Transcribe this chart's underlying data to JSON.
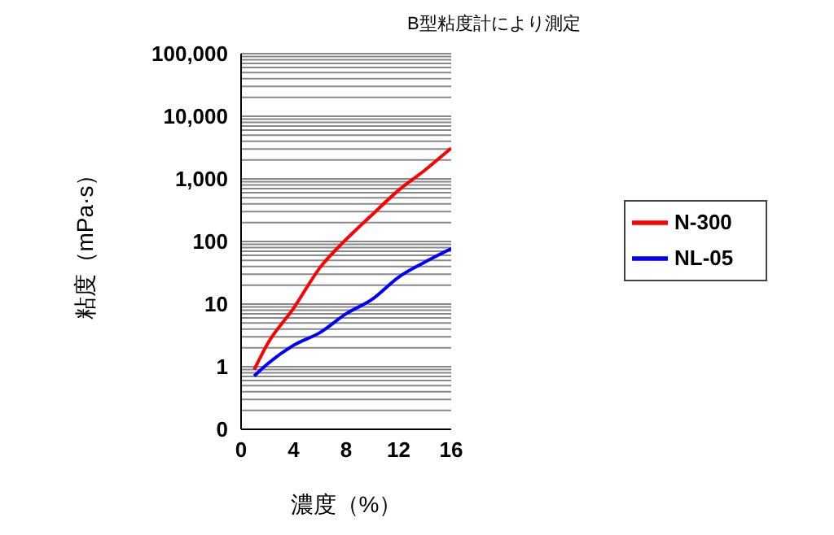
{
  "chart_data": {
    "type": "line",
    "annotations": [
      "B型粘度計により測定"
    ],
    "xlabel": "濃度（%）",
    "ylabel": "粘度（mPa·s）",
    "x": [
      1,
      2,
      4,
      6,
      8,
      10,
      12,
      14,
      16
    ],
    "series": [
      {
        "name": "N-300",
        "color": "#ff0000",
        "values": [
          0.9,
          2.3,
          8.6,
          38,
          108,
          270,
          660,
          1380,
          3100
        ]
      },
      {
        "name": "NL-05",
        "color": "#0000ff",
        "values": [
          0.71,
          1.1,
          2.2,
          3.5,
          7,
          12,
          27,
          47,
          77
        ]
      }
    ],
    "xlim": [
      0,
      16
    ],
    "xticks": [
      0,
      4,
      8,
      12,
      16
    ],
    "log": "y",
    "ylim": [
      0.1,
      100000
    ],
    "yticks": [
      {
        "value": 0.1,
        "label": "0"
      },
      {
        "value": 0.2,
        "label": null
      },
      {
        "value": 0.3,
        "label": null
      },
      {
        "value": 0.4,
        "label": null
      },
      {
        "value": 0.5,
        "label": null
      },
      {
        "value": 0.6,
        "label": null
      },
      {
        "value": 0.7,
        "label": null
      },
      {
        "value": 0.8,
        "label": null
      },
      {
        "value": 0.9,
        "label": null
      },
      {
        "value": 1,
        "label": "1"
      },
      {
        "value": 2,
        "label": null
      },
      {
        "value": 3,
        "label": null
      },
      {
        "value": 4,
        "label": null
      },
      {
        "value": 5,
        "label": null
      },
      {
        "value": 6,
        "label": null
      },
      {
        "value": 7,
        "label": null
      },
      {
        "value": 8,
        "label": null
      },
      {
        "value": 9,
        "label": null
      },
      {
        "value": 10,
        "label": "10"
      },
      {
        "value": 20,
        "label": null
      },
      {
        "value": 30,
        "label": null
      },
      {
        "value": 40,
        "label": null
      },
      {
        "value": 50,
        "label": null
      },
      {
        "value": 60,
        "label": null
      },
      {
        "value": 70,
        "label": null
      },
      {
        "value": 80,
        "label": null
      },
      {
        "value": 90,
        "label": null
      },
      {
        "value": 100,
        "label": "100"
      },
      {
        "value": 200,
        "label": null
      },
      {
        "value": 300,
        "label": null
      },
      {
        "value": 400,
        "label": null
      },
      {
        "value": 500,
        "label": null
      },
      {
        "value": 600,
        "label": null
      },
      {
        "value": 700,
        "label": null
      },
      {
        "value": 800,
        "label": null
      },
      {
        "value": 900,
        "label": null
      },
      {
        "value": 1000,
        "label": "1,000"
      },
      {
        "value": 2000,
        "label": null
      },
      {
        "value": 3000,
        "label": null
      },
      {
        "value": 4000,
        "label": null
      },
      {
        "value": 5000,
        "label": null
      },
      {
        "value": 6000,
        "label": null
      },
      {
        "value": 7000,
        "label": null
      },
      {
        "value": 8000,
        "label": null
      },
      {
        "value": 9000,
        "label": null
      },
      {
        "value": 10000,
        "label": "10,000"
      },
      {
        "value": 20000,
        "label": null
      },
      {
        "value": 30000,
        "label": null
      },
      {
        "value": 40000,
        "label": null
      },
      {
        "value": 50000,
        "label": null
      },
      {
        "value": 60000,
        "label": null
      },
      {
        "value": 70000,
        "label": null
      },
      {
        "value": 80000,
        "label": null
      },
      {
        "value": 90000,
        "label": null
      },
      {
        "value": 100000,
        "label": "100,000"
      }
    ],
    "grid": "y",
    "legend": "right",
    "marker": "none",
    "line_style": "solid"
  }
}
